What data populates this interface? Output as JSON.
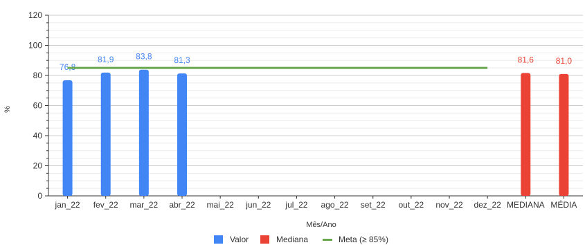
{
  "chart_data": {
    "type": "bar",
    "categories": [
      "jan_22",
      "fev_22",
      "mar_22",
      "abr_22",
      "mai_22",
      "jun_22",
      "jul_22",
      "ago_22",
      "set_22",
      "out_22",
      "nov_22",
      "dez_22",
      "MEDIANA",
      "MÉDIA"
    ],
    "series": [
      {
        "name": "Valor",
        "color": "#4285f4",
        "values": [
          76.8,
          81.9,
          83.8,
          81.3,
          null,
          null,
          null,
          null,
          null,
          null,
          null,
          null,
          null,
          null
        ],
        "labels": [
          "76,8",
          "81,9",
          "83,8",
          "81,3"
        ]
      },
      {
        "name": "Mediana",
        "color": "#ea4335",
        "values": [
          null,
          null,
          null,
          null,
          null,
          null,
          null,
          null,
          null,
          null,
          null,
          null,
          81.6,
          81.0
        ],
        "labels": [
          "81,6",
          "81,0"
        ]
      },
      {
        "name": "Meta (≥ 85%)",
        "color": "#6aa84f",
        "type": "line",
        "value": 85,
        "from": "jan_22",
        "to": "dez_22"
      }
    ],
    "yticks": [
      0,
      20,
      40,
      60,
      80,
      100,
      120
    ],
    "ylim": [
      0,
      120
    ],
    "xlabel": "Mês/Ano",
    "ylabel": "%",
    "grid": true,
    "legend": "bottom"
  }
}
